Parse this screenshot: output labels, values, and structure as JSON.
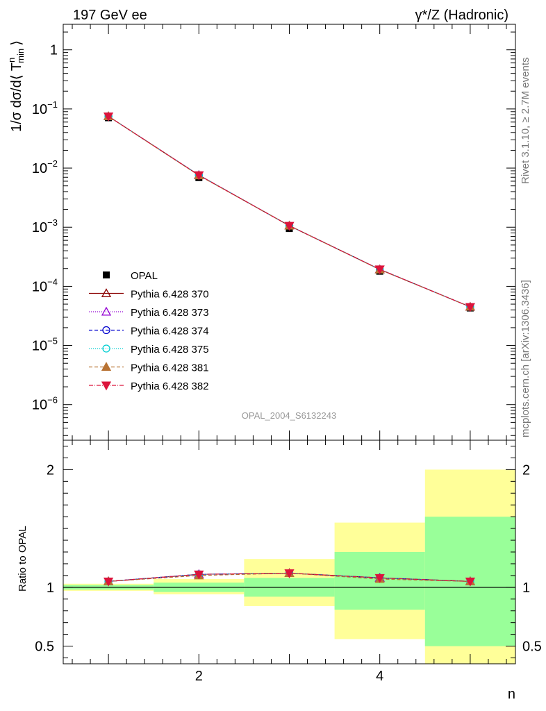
{
  "header": {
    "left": "197 GeV ee",
    "right": "γ*/Z (Hadronic)"
  },
  "side": {
    "rivet": "Rivet 3.1.10, ≥ 2.7M events",
    "mcplots": "mcplots.cern.ch [arXiv:1306.3436]"
  },
  "watermark": "OPAL_2004_S6132243",
  "xlabel": "n",
  "ylabel_main": "1/σ dσ/d⟨ T",
  "ylabel_main_sup": "n",
  "ylabel_main_sub": "min",
  "ylabel_main_close": "⟩",
  "ylabel_ratio": "Ratio to OPAL",
  "chart_data": [
    {
      "type": "line",
      "panel": "main",
      "yscale": "log",
      "xlim": [
        0.5,
        5.5
      ],
      "ylim": [
        2.5e-07,
        2.7
      ],
      "x_ticks": [
        "2",
        "4"
      ],
      "y_ticks": [
        {
          "base": "1",
          "exp": ""
        },
        {
          "base": "10",
          "exp": "−1"
        },
        {
          "base": "10",
          "exp": "−2"
        },
        {
          "base": "10",
          "exp": "−3"
        },
        {
          "base": "10",
          "exp": "−4"
        },
        {
          "base": "10",
          "exp": "−5"
        },
        {
          "base": "10",
          "exp": "−6"
        }
      ],
      "x": [
        1,
        2,
        3,
        4,
        5
      ],
      "data": {
        "name": "OPAL",
        "values": [
          0.071,
          0.0069,
          0.00095,
          0.00018,
          4.3e-05
        ]
      },
      "series": [
        {
          "name": "Pythia 6.428 370",
          "color": "#8b0000",
          "dash": "",
          "marker": "triangle-open",
          "values": [
            0.075,
            0.0076,
            0.00106,
            0.000193,
            4.5e-05
          ]
        },
        {
          "name": "Pythia 6.428 373",
          "color": "#9400d3",
          "dash": "1,2",
          "marker": "triangle-open",
          "values": [
            0.075,
            0.0076,
            0.00106,
            0.000193,
            4.5e-05
          ]
        },
        {
          "name": "Pythia 6.428 374",
          "color": "#0000cd",
          "dash": "5,3",
          "marker": "circle-open",
          "values": [
            0.075,
            0.0076,
            0.00106,
            0.000194,
            4.5e-05
          ]
        },
        {
          "name": "Pythia 6.428 375",
          "color": "#00ced1",
          "dash": "1,2",
          "marker": "circle-open",
          "values": [
            0.075,
            0.0076,
            0.00106,
            0.000193,
            4.5e-05
          ]
        },
        {
          "name": "Pythia 6.428 381",
          "color": "#b87333",
          "dash": "5,3",
          "marker": "triangle-filled",
          "values": [
            0.075,
            0.0075,
            0.00106,
            0.000192,
            4.5e-05
          ]
        },
        {
          "name": "Pythia 6.428 382",
          "color": "#dc143c",
          "dash": "6,2,1,2",
          "marker": "triangle-down-filled",
          "values": [
            0.075,
            0.0076,
            0.00106,
            0.000194,
            4.5e-05
          ]
        }
      ]
    },
    {
      "type": "line",
      "panel": "ratio",
      "yscale": "linear",
      "xlim": [
        0.5,
        5.5
      ],
      "ylim": [
        0.35,
        2.25
      ],
      "y_ticks": [
        "2",
        "1",
        "0.5"
      ],
      "x": [
        1,
        2,
        3,
        4,
        5
      ],
      "bands": [
        {
          "x0": 0.5,
          "x1": 1.5,
          "inner": [
            0.98,
            1.02
          ],
          "outer": [
            0.97,
            1.03
          ]
        },
        {
          "x0": 1.5,
          "x1": 2.5,
          "inner": [
            0.96,
            1.04
          ],
          "outer": [
            0.94,
            1.07
          ]
        },
        {
          "x0": 2.5,
          "x1": 3.5,
          "inner": [
            0.92,
            1.08
          ],
          "outer": [
            0.84,
            1.24
          ]
        },
        {
          "x0": 3.5,
          "x1": 4.5,
          "inner": [
            0.81,
            1.3
          ],
          "outer": [
            0.56,
            1.55
          ]
        },
        {
          "x0": 4.5,
          "x1": 5.5,
          "inner": [
            0.5,
            1.6
          ],
          "outer": [
            0.35,
            2.0
          ]
        }
      ],
      "series": [
        {
          "name": "Pythia 6.428 370",
          "values": [
            1.05,
            1.11,
            1.12,
            1.08,
            1.05
          ]
        },
        {
          "name": "Pythia 6.428 373",
          "values": [
            1.05,
            1.11,
            1.12,
            1.08,
            1.05
          ]
        },
        {
          "name": "Pythia 6.428 374",
          "values": [
            1.05,
            1.11,
            1.12,
            1.08,
            1.05
          ]
        },
        {
          "name": "Pythia 6.428 375",
          "values": [
            1.05,
            1.11,
            1.12,
            1.08,
            1.05
          ]
        },
        {
          "name": "Pythia 6.428 381",
          "values": [
            1.05,
            1.1,
            1.12,
            1.07,
            1.05
          ]
        },
        {
          "name": "Pythia 6.428 382",
          "values": [
            1.05,
            1.11,
            1.12,
            1.08,
            1.05
          ]
        }
      ]
    }
  ]
}
